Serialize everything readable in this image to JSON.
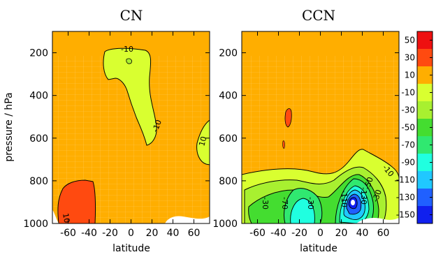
{
  "chart_data": [
    {
      "type": "contour",
      "title": "CN",
      "xlabel": "latitude",
      "ylabel": "pressure / hPa",
      "xlim": [
        -75,
        75
      ],
      "ylim": [
        1000,
        100
      ],
      "x_ticks": [
        -60,
        -40,
        -20,
        0,
        20,
        40,
        60
      ],
      "y_ticks": [
        200,
        400,
        600,
        800,
        1000
      ],
      "background_level": "-10 to 10",
      "regions": [
        {
          "level": "-30 to -10",
          "label": "-10",
          "extent_lat": [
            -25,
            20
          ],
          "extent_p": [
            110,
            580
          ]
        },
        {
          "level": "-30 to -10",
          "label": "-10",
          "extent_lat": [
            62,
            75
          ],
          "extent_p": [
            450,
            660
          ]
        },
        {
          "level": "10 to 30",
          "label": "10",
          "extent_lat": [
            -70,
            -45
          ],
          "extent_p": [
            770,
            1000
          ]
        }
      ],
      "contour_labels": [
        "-10",
        "-10",
        "10",
        "10"
      ]
    },
    {
      "type": "contour",
      "title": "CCN",
      "xlabel": "latitude",
      "ylabel": "",
      "xlim": [
        -75,
        75
      ],
      "ylim": [
        1000,
        100
      ],
      "x_ticks": [
        -60,
        -40,
        -20,
        0,
        20,
        40,
        60
      ],
      "y_ticks": [
        200,
        400,
        600,
        800,
        1000
      ],
      "background_level": "-10 to 10",
      "regions": [
        {
          "level": "10 to 30",
          "lat": [
            -35,
            -30
          ],
          "p": [
            380,
            530
          ]
        },
        {
          "level": "-30 to -10",
          "lat": [
            -75,
            75
          ],
          "p": [
            680,
            1000
          ]
        },
        {
          "level": "-50 to -30",
          "lat": [
            -72,
            55
          ],
          "p": [
            740,
            1000
          ]
        },
        {
          "level": "-70 to -50",
          "lat": [
            -45,
            50
          ],
          "p": [
            780,
            1000
          ]
        },
        {
          "level": "-90 to -70",
          "lat": [
            -35,
            45
          ],
          "p": [
            810,
            1000
          ]
        },
        {
          "level": "-110 to -90",
          "lat": [
            15,
            38
          ],
          "p": [
            780,
            960
          ]
        },
        {
          "level": "-130 to -110",
          "lat": [
            20,
            33
          ],
          "p": [
            820,
            930
          ]
        },
        {
          "level": "-150 to -130",
          "lat": [
            22,
            30
          ],
          "p": [
            840,
            920
          ]
        }
      ],
      "contour_labels": [
        "-10",
        "-30",
        "-70",
        "-30",
        "-110",
        "-130",
        "-50",
        "-30"
      ]
    }
  ],
  "colorbar": {
    "ticks": [
      "50",
      "30",
      "10",
      "-10",
      "-30",
      "-50",
      "-70",
      "-90",
      "-110",
      "-130",
      "-150"
    ],
    "colors": [
      "#ee1010",
      "#ff4a10",
      "#ffae00",
      "#d9ff30",
      "#a8f030",
      "#44dd30",
      "#30e870",
      "#20ffe0",
      "#20c8ff",
      "#2060ff",
      "#1020ee"
    ]
  }
}
